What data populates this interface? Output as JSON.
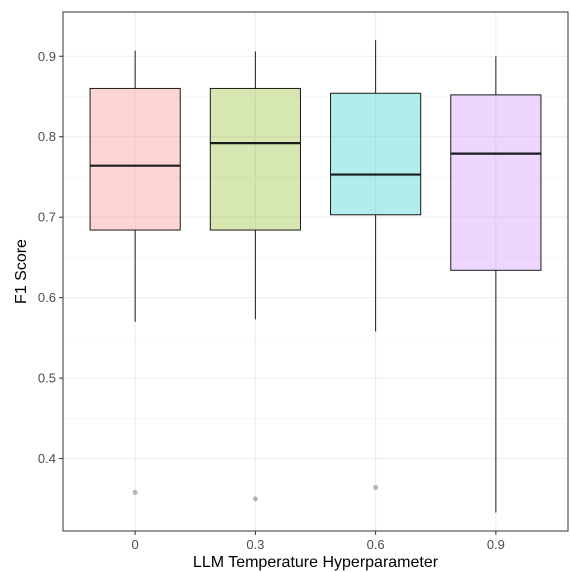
{
  "chart_data": {
    "type": "box",
    "title": "",
    "xlabel": "LLM Temperature Hyperparameter",
    "ylabel": "F1 Score",
    "categories": [
      "0",
      "0.3",
      "0.6",
      "0.9"
    ],
    "ylim": [
      0.31,
      0.955
    ],
    "yticks": [
      0.4,
      0.5,
      0.6,
      0.7,
      0.8,
      0.9
    ],
    "ytick_labels": [
      "0.4",
      "0.5",
      "0.6",
      "0.7",
      "0.8",
      "0.9"
    ],
    "grid": true,
    "legend": "none",
    "boxes": [
      {
        "category": "0",
        "whisker_low": 0.57,
        "q1": 0.684,
        "median": 0.764,
        "q3": 0.86,
        "whisker_high": 0.907,
        "outliers": [
          0.358
        ],
        "fill": "#f8766d"
      },
      {
        "category": "0.3",
        "whisker_low": 0.573,
        "q1": 0.684,
        "median": 0.792,
        "q3": 0.86,
        "whisker_high": 0.906,
        "outliers": [
          0.35
        ],
        "fill": "#7cae00"
      },
      {
        "category": "0.6",
        "whisker_low": 0.558,
        "q1": 0.703,
        "median": 0.753,
        "q3": 0.854,
        "whisker_high": 0.92,
        "outliers": [
          0.364
        ],
        "fill": "#00bfc4"
      },
      {
        "category": "0.9",
        "whisker_low": 0.333,
        "q1": 0.634,
        "median": 0.779,
        "q3": 0.852,
        "whisker_high": 0.9,
        "outliers": [],
        "fill": "#c77cff"
      }
    ]
  }
}
